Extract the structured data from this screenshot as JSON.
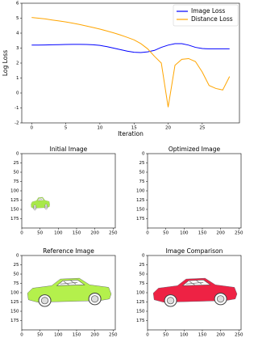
{
  "chart_data": [
    {
      "type": "line",
      "xlabel": "Iteration",
      "ylabel": "Log Loss",
      "x": [
        0,
        1,
        2,
        3,
        4,
        5,
        6,
        7,
        8,
        9,
        10,
        11,
        12,
        13,
        14,
        15,
        16,
        17,
        18,
        19,
        20,
        21,
        22,
        23,
        24,
        25,
        26,
        27,
        28,
        29
      ],
      "series": [
        {
          "name": "Image Loss",
          "color": "blue",
          "values": [
            3.2,
            3.2,
            3.21,
            3.22,
            3.23,
            3.24,
            3.25,
            3.25,
            3.24,
            3.22,
            3.18,
            3.1,
            3.0,
            2.9,
            2.8,
            2.72,
            2.7,
            2.75,
            2.85,
            3.05,
            3.2,
            3.3,
            3.3,
            3.2,
            3.05,
            2.97,
            2.95,
            2.95,
            2.95,
            2.95
          ]
        },
        {
          "name": "Distance Loss",
          "color": "orange",
          "values": [
            5.05,
            5.0,
            4.95,
            4.88,
            4.82,
            4.75,
            4.67,
            4.58,
            4.48,
            4.38,
            4.27,
            4.15,
            4.02,
            3.88,
            3.72,
            3.55,
            3.3,
            2.95,
            2.45,
            2.0,
            -0.95,
            1.85,
            2.25,
            2.3,
            2.1,
            1.4,
            0.5,
            0.3,
            0.2,
            1.1
          ]
        }
      ],
      "xlim": [
        -1.45,
        30.45
      ],
      "xticks": [
        0,
        5,
        10,
        15,
        20,
        25
      ],
      "ylim": [
        -2,
        6
      ],
      "yticks": [
        -2,
        -1,
        0,
        1,
        2,
        3,
        4,
        5,
        6
      ],
      "legend": "upper right"
    },
    {
      "type": "image",
      "title": "Initial Image",
      "xlim": [
        0,
        256
      ],
      "xticks": [
        0,
        50,
        100,
        150,
        200,
        250
      ],
      "ylim": [
        200,
        0
      ],
      "yticks": [
        0,
        25,
        50,
        75,
        100,
        125,
        150,
        175
      ]
    },
    {
      "type": "image",
      "title": "Optimized Image",
      "xlim": [
        0,
        256
      ],
      "xticks": [
        0,
        50,
        100,
        150,
        200,
        250
      ],
      "ylim": [
        200,
        0
      ],
      "yticks": [
        0,
        25,
        50,
        75,
        100,
        125,
        150,
        175
      ]
    },
    {
      "type": "image",
      "title": "Reference Image",
      "xlim": [
        0,
        256
      ],
      "xticks": [
        0,
        50,
        100,
        150,
        200,
        250
      ],
      "ylim": [
        200,
        0
      ],
      "yticks": [
        0,
        25,
        50,
        75,
        100,
        125,
        150,
        175
      ]
    },
    {
      "type": "image",
      "title": "Image Comparison",
      "xlim": [
        0,
        256
      ],
      "xticks": [
        0,
        50,
        100,
        150,
        200,
        250
      ],
      "ylim": [
        200,
        0
      ],
      "yticks": [
        0,
        25,
        50,
        75,
        100,
        125,
        150,
        175
      ]
    }
  ]
}
